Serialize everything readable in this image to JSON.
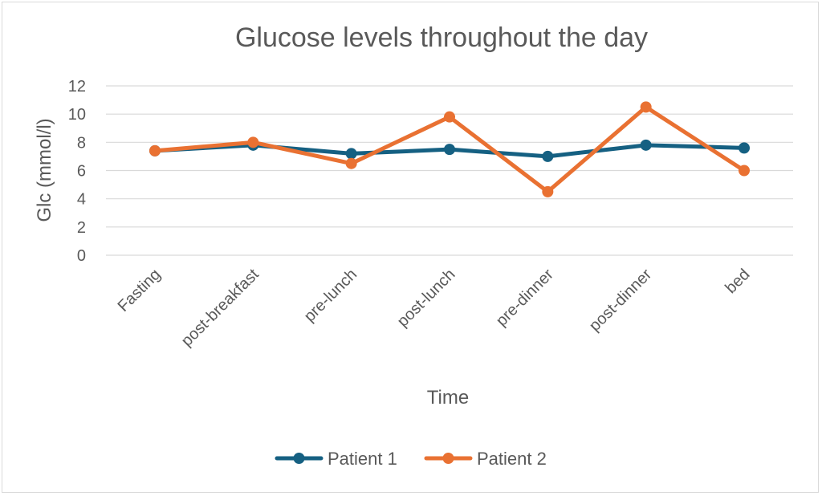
{
  "chart_data": {
    "type": "line",
    "title": "Glucose levels throughout the day",
    "xlabel": "Time",
    "ylabel": "Glc (mmol/l)",
    "categories": [
      "Fasting",
      "post-breakfast",
      "pre-lunch",
      "post-lunch",
      "pre-dinner",
      "post-dinner",
      "bed"
    ],
    "ylim": [
      0,
      12
    ],
    "yticks": [
      0,
      2,
      4,
      6,
      8,
      10,
      12
    ],
    "grid": true,
    "legend_position": "bottom",
    "series": [
      {
        "name": "Patient 1",
        "color": "#156082",
        "values": [
          7.4,
          7.8,
          7.2,
          7.5,
          7.0,
          7.8,
          7.6
        ]
      },
      {
        "name": "Patient 2",
        "color": "#E97132",
        "values": [
          7.4,
          8.0,
          6.5,
          9.8,
          4.5,
          10.5,
          6.0
        ]
      }
    ]
  }
}
